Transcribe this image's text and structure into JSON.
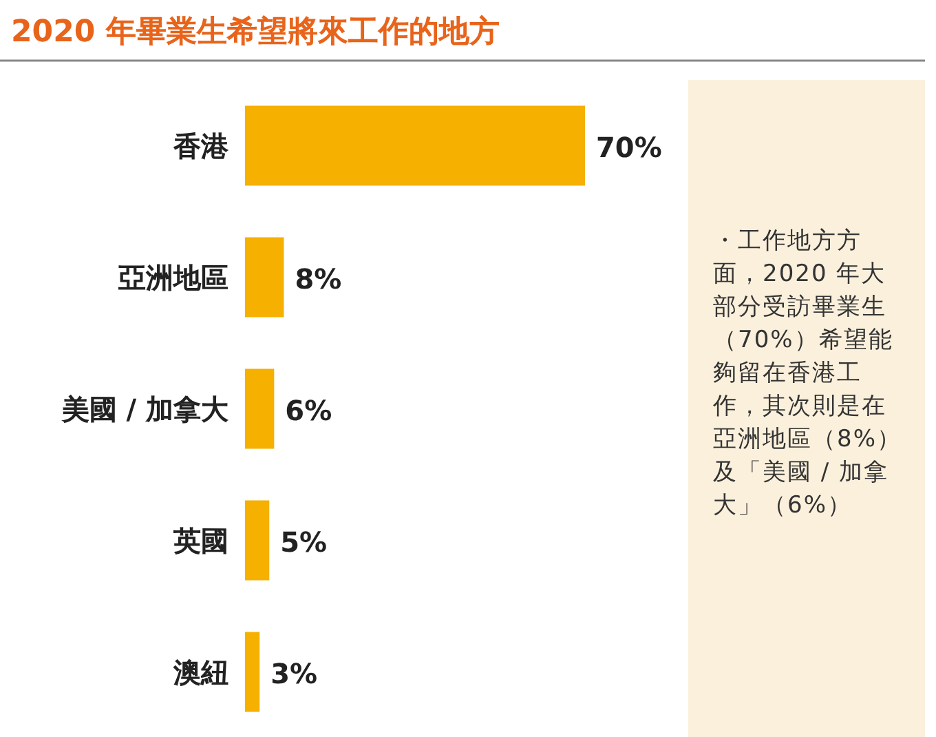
{
  "chart_data": {
    "type": "bar",
    "orientation": "horizontal",
    "title": "2020 年畢業生希望將來工作的地方",
    "categories": [
      "香港",
      "亞洲地區",
      "美國 / 加拿大",
      "英國",
      "澳紐"
    ],
    "values": [
      70,
      8,
      6,
      5,
      3
    ],
    "color": "#f5b000",
    "value_labels": [
      "70%",
      "8%",
      "6%",
      "5%",
      "3%"
    ],
    "annotations": [
      "・工作地方方面，2020 年大部分受訪畢業生（70%）希望能夠留在香港工作，其次則是在亞洲地區（8%）及「美國 / 加拿大」（6%）"
    ]
  }
}
